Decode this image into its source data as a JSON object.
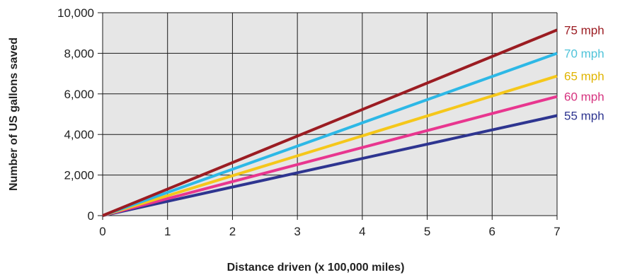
{
  "chart_data": {
    "type": "line",
    "xlabel": "Distance driven  (x 100,000 miles)",
    "ylabel": "Number of US gallons saved",
    "xlim": [
      0,
      7
    ],
    "ylim": [
      0,
      10000
    ],
    "x_ticks": [
      "0",
      "1",
      "2",
      "3",
      "4",
      "5",
      "6",
      "7"
    ],
    "y_ticks": [
      "0",
      "2,000",
      "4,000",
      "6,000",
      "8,000",
      "10,000"
    ],
    "grid": true,
    "plot_background": "#e6e6e6",
    "grid_color": "#1a1a1a",
    "series": [
      {
        "name": "75 mph",
        "color": "#9b1c22",
        "x": [
          0,
          7
        ],
        "y": [
          0,
          9150
        ]
      },
      {
        "name": "70 mph",
        "color": "#2db8e6",
        "x": [
          0,
          7
        ],
        "y": [
          0,
          8000
        ]
      },
      {
        "name": "65 mph",
        "color": "#f5c71a",
        "x": [
          0,
          7
        ],
        "y": [
          0,
          6880
        ]
      },
      {
        "name": "60 mph",
        "color": "#e8368f",
        "x": [
          0,
          7
        ],
        "y": [
          0,
          5870
        ]
      },
      {
        "name": "55 mph",
        "color": "#2e3590",
        "x": [
          0,
          7
        ],
        "y": [
          0,
          4930
        ]
      }
    ],
    "label_colors": {
      "75 mph": "#9b1c22",
      "70 mph": "#4fc3d9",
      "65 mph": "#e0b400",
      "60 mph": "#d6337f",
      "55 mph": "#2e3590"
    },
    "legend": "right, inline at line ends"
  }
}
